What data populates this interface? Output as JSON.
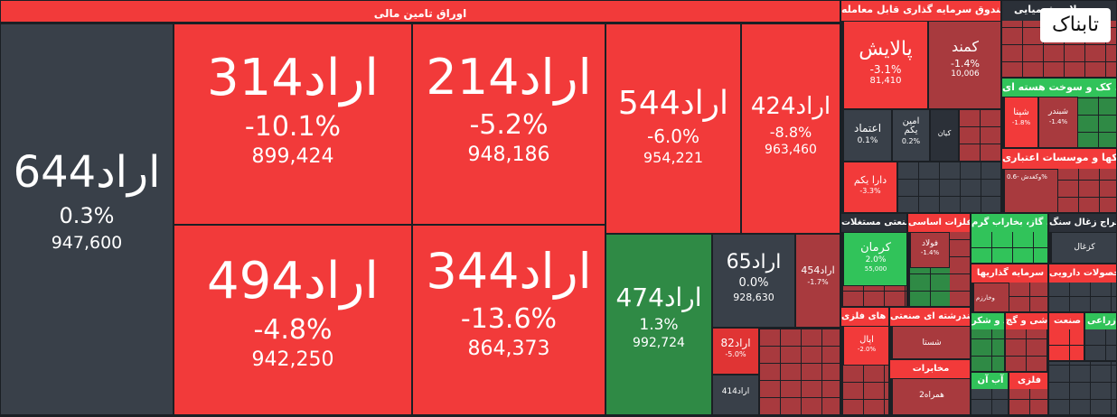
{
  "sectors": {
    "bonds": {
      "title": "اوراق تامین مالی"
    },
    "funds": {
      "title": "صندوق سرمایه گذاری قابل معامله"
    },
    "chem": {
      "title": "محصولات شیمیایی"
    },
    "nuclear": {
      "title": "فرآورده های نفتی، کک و سوخت هسته ای"
    },
    "credit": {
      "title": "بانکها و موسسات اعتباری"
    },
    "multi": {
      "title": "چندرشته ای صنعتی مستغلات"
    },
    "basic_metals": {
      "title": "فلزات اساسی"
    },
    "power": {
      "title": "عرضه برق، گاز، بخاراب گرم"
    },
    "coal": {
      "title": "استخراج زغال سنگ"
    },
    "invest": {
      "title": "سرمایه گذاریها"
    },
    "pharma": {
      "title": "مواد و محصولات دارویی"
    },
    "metal_ores": {
      "title": "استخراج کانه های فلزی"
    },
    "industrial": {
      "title": "چندرشته ای صنعتی"
    },
    "telecom": {
      "title": "مخابرات"
    },
    "shekar": {
      "title": "قند و شکر"
    },
    "kashi": {
      "title": "کاشی و گچ"
    },
    "sanat": {
      "title": "صنعت"
    },
    "zeraei": {
      "title": "زراعی"
    },
    "abe": {
      "title": "آب آن"
    },
    "feleze": {
      "title": "فلزی"
    }
  },
  "tiles": {
    "arad644": {
      "symbol": "اراد644",
      "pct": "0.3%",
      "val": "947,600"
    },
    "arad314": {
      "symbol": "اراد314",
      "pct": "-10.1%",
      "val": "899,424"
    },
    "arad214": {
      "symbol": "اراد214",
      "pct": "-5.2%",
      "val": "948,186"
    },
    "arad544": {
      "symbol": "اراد544",
      "pct": "-6.0%",
      "val": "954,221"
    },
    "arad424": {
      "symbol": "اراد424",
      "pct": "-8.8%",
      "val": "963,460"
    },
    "arad494": {
      "symbol": "اراد494",
      "pct": "-4.8%",
      "val": "942,250"
    },
    "arad344": {
      "symbol": "اراد344",
      "pct": "-13.6%",
      "val": "864,373"
    },
    "arad474": {
      "symbol": "اراد474",
      "pct": "1.3%",
      "val": "992,724"
    },
    "arad65": {
      "symbol": "اراد65",
      "pct": "0.0%",
      "val": "928,630"
    },
    "arad454": {
      "symbol": "اراد454",
      "pct": "-1.7%"
    },
    "arad82": {
      "symbol": "اراد82",
      "pct": "-5.0%"
    },
    "arad414": {
      "symbol": "اراد414"
    },
    "palayesh": {
      "symbol": "پالایش",
      "pct": "-3.1%",
      "val": "81,410"
    },
    "kamand": {
      "symbol": "کمند",
      "pct": "-1.4%",
      "val": "10,006"
    },
    "etemad": {
      "symbol": "اعتماد",
      "pct": "0.1%"
    },
    "amin": {
      "symbol": "امین یکم",
      "pct": "0.2%"
    },
    "kian": {
      "symbol": "کیان"
    },
    "dara": {
      "symbol": "دارا یکم",
      "pct": "-3.3%"
    },
    "shepna": {
      "symbol": "شپنا",
      "pct": "-1.8%"
    },
    "shebandar": {
      "symbol": "شبندر",
      "pct": "-1.4%"
    },
    "vakhariz": {
      "symbol": "وکغدش -0.6%"
    },
    "kerman": {
      "symbol": "کرمان",
      "pct": "2.0%",
      "val": "55,000"
    },
    "fooolad": {
      "symbol": "فولاد",
      "pct": "-1.4%"
    },
    "kazghal": {
      "symbol": "کزغال"
    },
    "vkharzam": {
      "symbol": "وخارزم"
    },
    "apal": {
      "symbol": "اپال",
      "pct": "-2.0%"
    },
    "shasta": {
      "symbol": "شستا"
    },
    "hamrah": {
      "symbol": "همراه2"
    }
  },
  "logo": {
    "text": "تابناک"
  }
}
